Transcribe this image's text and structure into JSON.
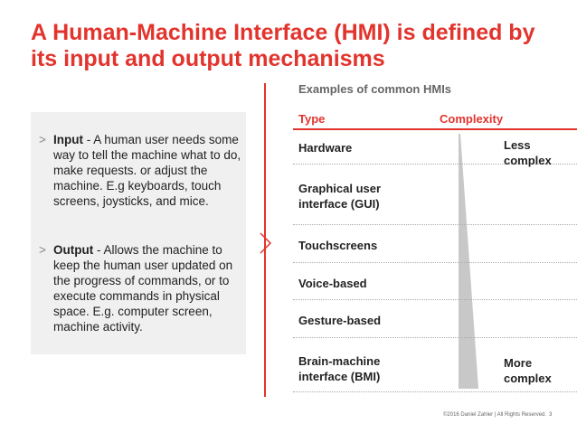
{
  "title": "A Human-Machine Interface (HMI) is defined by its input and output mechanisms",
  "bullets": [
    {
      "head": "Input",
      "body": " - A human user needs some way to tell the machine what to do, make requests. or adjust the machine. E.g keyboards, touch screens, joysticks, and mice."
    },
    {
      "head": "Output",
      "body": " - Allows the machine to keep the human user updated on the progress of commands, or to execute commands in physical space. E.g. computer screen, machine activity."
    }
  ],
  "bullet_marker": ">",
  "table": {
    "subtitle": "Examples of common HMIs",
    "col_type": "Type",
    "col_complexity": "Complexity",
    "rows": [
      "Hardware",
      "Graphical user interface (GUI)",
      "Touchscreens",
      "Voice-based",
      "Gesture-based",
      "Brain-machine interface (BMI)"
    ],
    "less_label": "Less complex",
    "more_label": "More complex"
  },
  "footer": "©2016 Daniel Zahler | All Rights Reserved.",
  "page_number": "3",
  "colors": {
    "accent": "#e2342d",
    "panel": "#f0f0f0",
    "wedge": "#c8c8c8"
  }
}
